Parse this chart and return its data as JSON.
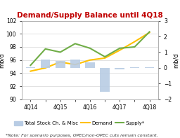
{
  "title": "Demand/Supply Balance until 4Q18",
  "title_color": "#c00000",
  "left_ylabel": "mb/d",
  "right_ylabel": "mb/d",
  "x_positions": [
    0,
    1,
    2,
    3,
    4,
    5,
    6,
    7,
    8
  ],
  "bar_values": [
    0.05,
    0.55,
    0.45,
    0.55,
    0.35,
    -1.5,
    -0.1,
    0.05,
    0.05
  ],
  "demand_values": [
    94.3,
    94.8,
    95.7,
    95.3,
    96.0,
    96.3,
    97.5,
    98.8,
    100.2
  ],
  "supply_values": [
    95.2,
    97.7,
    97.2,
    98.5,
    97.8,
    96.5,
    97.8,
    98.0,
    100.3
  ],
  "left_ylim": [
    90,
    102
  ],
  "right_ylim": [
    -2.0,
    3.0
  ],
  "left_yticks": [
    90,
    92,
    94,
    96,
    98,
    100,
    102
  ],
  "right_yticks": [
    -2.0,
    -1.0,
    0.0,
    1.0,
    2.0,
    3.0
  ],
  "bar_color": "#b8cce4",
  "demand_color": "#ffc000",
  "supply_color": "#70ad47",
  "bg_color": "#ffffff",
  "note": "*Note: For scenario purposes, OPEC/non-OPEC cuts remain constant.",
  "legend_items": [
    "Total Stock Ch. & Misc",
    "Demand",
    "Supply*"
  ],
  "xtick_labels": [
    "4Q14",
    "",
    "4Q15",
    "",
    "4Q16",
    "",
    "4Q17",
    "",
    "4Q18"
  ],
  "bar_width": 0.65,
  "figsize": [
    2.56,
    1.97
  ],
  "dpi": 100
}
